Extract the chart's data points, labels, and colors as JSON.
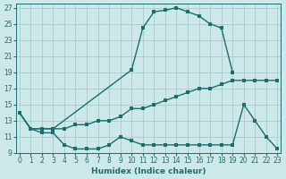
{
  "xlabel": "Humidex (Indice chaleur)",
  "background_color": "#cce8e8",
  "grid_color": "#aacece",
  "line_color": "#1a6e6e",
  "xlim": [
    -0.3,
    23.3
  ],
  "ylim": [
    9,
    27.5
  ],
  "yticks": [
    9,
    11,
    13,
    15,
    17,
    19,
    21,
    23,
    25,
    27
  ],
  "xticks": [
    0,
    1,
    2,
    3,
    4,
    5,
    6,
    7,
    8,
    9,
    10,
    11,
    12,
    13,
    14,
    15,
    16,
    17,
    18,
    19,
    20,
    21,
    22,
    23
  ],
  "line_top_x": [
    0,
    1,
    2,
    3,
    10,
    11,
    12,
    13,
    14,
    15,
    16,
    17,
    18,
    19
  ],
  "line_top_y": [
    14,
    12,
    12,
    12,
    19.3,
    24.5,
    26.5,
    26.7,
    27,
    26.5,
    26,
    25,
    24.5,
    19
  ],
  "line_mid_x": [
    0,
    1,
    2,
    3,
    4,
    5,
    6,
    7,
    8,
    9,
    10,
    11,
    12,
    13,
    14,
    15,
    16,
    17,
    18,
    19,
    20,
    21,
    22,
    23
  ],
  "line_mid_y": [
    14,
    12,
    12,
    12,
    12,
    12.5,
    12.5,
    13,
    13,
    13.5,
    14.5,
    14.5,
    15,
    15.5,
    16,
    16.5,
    17,
    17,
    17.5,
    18,
    18,
    18,
    18,
    18
  ],
  "line_bot_x": [
    0,
    1,
    2,
    3,
    4,
    5,
    6,
    7,
    8,
    9,
    10,
    11,
    12,
    13,
    14,
    15,
    16,
    17,
    18,
    19,
    20,
    21,
    22,
    23
  ],
  "line_bot_y": [
    14,
    12,
    11.5,
    11.5,
    10,
    9.5,
    9.5,
    9.5,
    10,
    11,
    10.5,
    10,
    10,
    10,
    10,
    10,
    10,
    10,
    10,
    10,
    15,
    13,
    11,
    9.5
  ]
}
